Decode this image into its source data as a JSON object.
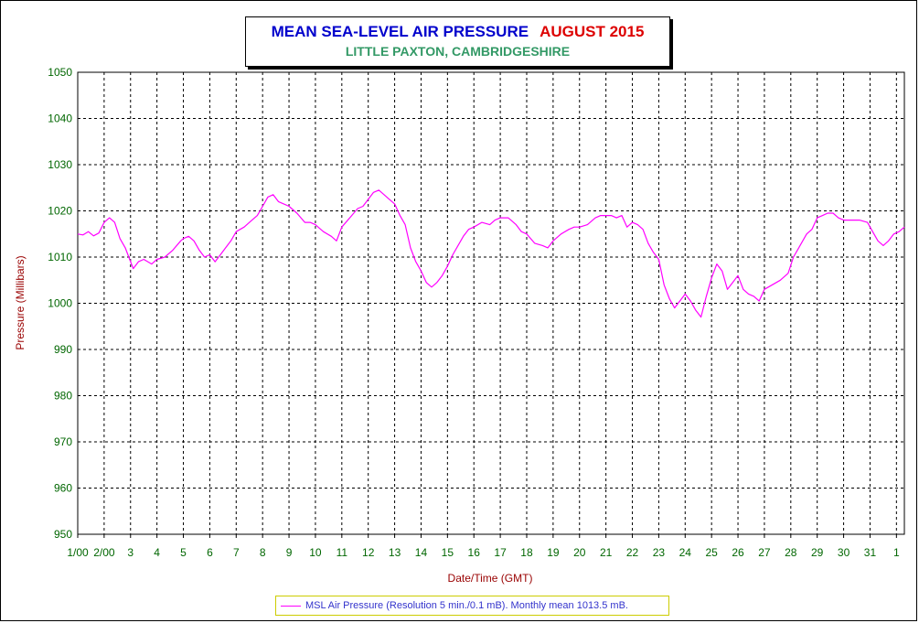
{
  "title": "MEAN SEA-LEVEL AIR PRESSURE",
  "title_month": "AUGUST 2015",
  "subtitle": "LITTLE PAXTON, CAMBRIDGESHIRE",
  "colors": {
    "series": "#ff00ff",
    "ytick": "#006600",
    "axis_title": "#990000",
    "title": "#0000cc",
    "title_month": "#dd0000",
    "subtitle": "#339966"
  },
  "chart_data": {
    "type": "line",
    "title": "MEAN SEA-LEVEL AIR PRESSURE AUGUST 2015",
    "subtitle": "LITTLE PAXTON, CAMBRIDGESHIRE",
    "xlabel": "Date/Time (GMT)",
    "ylabel": "Pressure (Millibars)",
    "ylim": [
      950,
      1050
    ],
    "yticks": [
      950,
      960,
      970,
      980,
      990,
      1000,
      1010,
      1020,
      1030,
      1040,
      1050
    ],
    "xlim": [
      1,
      32.3
    ],
    "xticks": [
      {
        "x": 1,
        "label": "1/00"
      },
      {
        "x": 2,
        "label": "2/00"
      },
      {
        "x": 3,
        "label": "3"
      },
      {
        "x": 4,
        "label": "4"
      },
      {
        "x": 5,
        "label": "5"
      },
      {
        "x": 6,
        "label": "6"
      },
      {
        "x": 7,
        "label": "7"
      },
      {
        "x": 8,
        "label": "8"
      },
      {
        "x": 9,
        "label": "9"
      },
      {
        "x": 10,
        "label": "10"
      },
      {
        "x": 11,
        "label": "11"
      },
      {
        "x": 12,
        "label": "12"
      },
      {
        "x": 13,
        "label": "13"
      },
      {
        "x": 14,
        "label": "14"
      },
      {
        "x": 15,
        "label": "15"
      },
      {
        "x": 16,
        "label": "16"
      },
      {
        "x": 17,
        "label": "17"
      },
      {
        "x": 18,
        "label": "18"
      },
      {
        "x": 19,
        "label": "19"
      },
      {
        "x": 20,
        "label": "20"
      },
      {
        "x": 21,
        "label": "21"
      },
      {
        "x": 22,
        "label": "22"
      },
      {
        "x": 23,
        "label": "23"
      },
      {
        "x": 24,
        "label": "24"
      },
      {
        "x": 25,
        "label": "25"
      },
      {
        "x": 26,
        "label": "26"
      },
      {
        "x": 27,
        "label": "27"
      },
      {
        "x": 28,
        "label": "28"
      },
      {
        "x": 29,
        "label": "29"
      },
      {
        "x": 30,
        "label": "30"
      },
      {
        "x": 31,
        "label": "31"
      },
      {
        "x": 32,
        "label": "1"
      }
    ],
    "grid": true,
    "legend_placement": "bottom",
    "series": [
      {
        "name": "MSL Air Pressure (Resolution 5 min./0.1 mB). Monthly mean 1013.5 mB.",
        "x": [
          1.0,
          1.2,
          1.4,
          1.6,
          1.8,
          2.0,
          2.2,
          2.4,
          2.6,
          2.8,
          3.0,
          3.1,
          3.3,
          3.5,
          3.8,
          4.0,
          4.3,
          4.6,
          4.9,
          5.0,
          5.2,
          5.4,
          5.6,
          5.8,
          6.0,
          6.2,
          6.4,
          6.6,
          6.8,
          7.0,
          7.3,
          7.6,
          7.8,
          8.0,
          8.2,
          8.4,
          8.6,
          8.8,
          9.0,
          9.3,
          9.6,
          9.8,
          10.0,
          10.3,
          10.6,
          10.8,
          11.0,
          11.3,
          11.6,
          11.8,
          12.0,
          12.2,
          12.4,
          12.6,
          12.8,
          13.0,
          13.2,
          13.4,
          13.6,
          13.8,
          14.0,
          14.2,
          14.4,
          14.6,
          14.8,
          15.0,
          15.2,
          15.4,
          15.6,
          15.8,
          16.0,
          16.3,
          16.6,
          16.8,
          17.0,
          17.3,
          17.6,
          17.8,
          18.0,
          18.3,
          18.6,
          18.8,
          19.0,
          19.3,
          19.6,
          19.8,
          20.0,
          20.3,
          20.6,
          20.8,
          21.0,
          21.2,
          21.4,
          21.6,
          21.8,
          22.0,
          22.2,
          22.4,
          22.6,
          22.8,
          23.0,
          23.2,
          23.4,
          23.6,
          23.8,
          24.0,
          24.2,
          24.4,
          24.6,
          24.8,
          25.0,
          25.2,
          25.4,
          25.6,
          25.8,
          26.0,
          26.2,
          26.4,
          26.6,
          26.8,
          27.0,
          27.3,
          27.6,
          27.9,
          28.1,
          28.3,
          28.6,
          28.8,
          29.0,
          29.2,
          29.4,
          29.6,
          29.8,
          30.0,
          30.3,
          30.6,
          30.9,
          31.1,
          31.3,
          31.5,
          31.7,
          31.9,
          32.1,
          32.3
        ],
        "y": [
          1015,
          1014.8,
          1015.5,
          1014.6,
          1015.2,
          1017.5,
          1018.5,
          1017.5,
          1014,
          1012,
          1009,
          1007.5,
          1009,
          1009.5,
          1008.5,
          1009.5,
          1010,
          1011.5,
          1013.5,
          1014,
          1014.5,
          1013.5,
          1011.5,
          1010,
          1010.5,
          1009,
          1010.5,
          1012,
          1013.5,
          1015.5,
          1016.5,
          1018,
          1019,
          1021,
          1023,
          1023.5,
          1022,
          1021.5,
          1021,
          1019.5,
          1017.5,
          1017.5,
          1017,
          1015.5,
          1014.5,
          1013.5,
          1016.5,
          1018.5,
          1020.5,
          1021,
          1022.5,
          1024,
          1024.5,
          1023.5,
          1022.5,
          1021.5,
          1019,
          1017,
          1012,
          1009,
          1007,
          1004.5,
          1003.5,
          1004.5,
          1006,
          1008,
          1010.5,
          1012.5,
          1014.5,
          1016,
          1016.5,
          1017.5,
          1017,
          1018,
          1018.5,
          1018.5,
          1017,
          1015.5,
          1015,
          1013,
          1012.5,
          1012,
          1013.5,
          1015,
          1016,
          1016.5,
          1016.5,
          1017,
          1018.5,
          1019,
          1019,
          1019,
          1018.5,
          1019,
          1016.5,
          1017.5,
          1017,
          1016,
          1013,
          1011,
          1009.5,
          1004,
          1001,
          999,
          1000.5,
          1002,
          1000.5,
          998.5,
          997,
          1001.5,
          1005.5,
          1008.5,
          1007,
          1003,
          1004.5,
          1006,
          1003,
          1002,
          1001.5,
          1000.5,
          1003,
          1004,
          1005,
          1006.5,
          1010,
          1012,
          1015,
          1016,
          1018.5,
          1019,
          1019.5,
          1019.5,
          1018.5,
          1018,
          1018,
          1018,
          1017.5,
          1015.5,
          1013.5,
          1012.5,
          1013.5,
          1015,
          1015.5,
          1016.5
        ]
      }
    ]
  },
  "legend_text": "MSL Air Pressure (Resolution 5 min./0.1 mB). Monthly mean 1013.5 mB."
}
